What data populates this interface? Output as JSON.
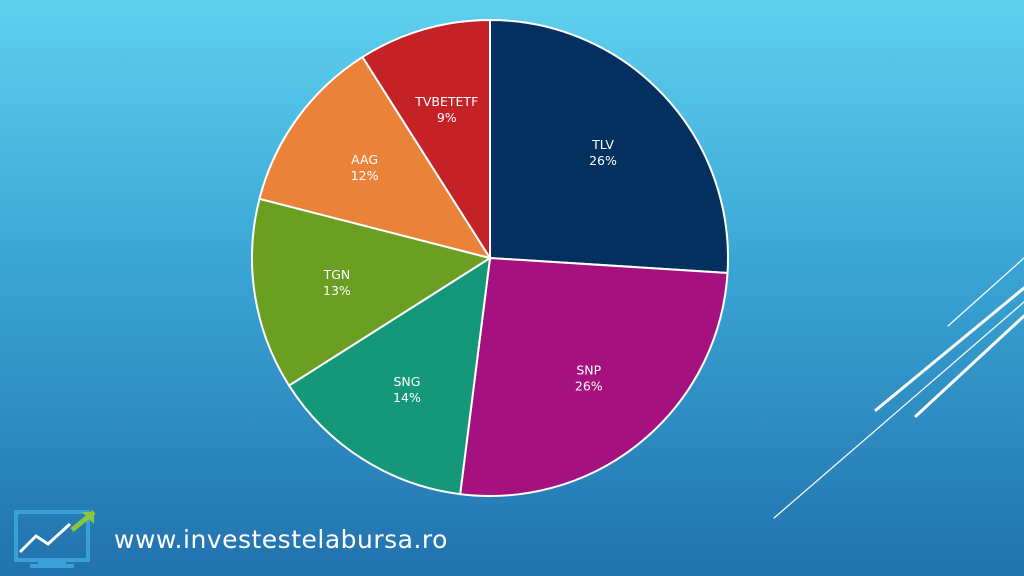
{
  "chart_data": {
    "type": "pie",
    "title": "",
    "slices": [
      {
        "label": "TLV",
        "value": 26,
        "display": "26%",
        "color": "#04305f"
      },
      {
        "label": "SNP",
        "value": 26,
        "display": "26%",
        "color": "#a5117f"
      },
      {
        "label": "SNG",
        "value": 14,
        "display": "14%",
        "color": "#159879"
      },
      {
        "label": "TGN",
        "value": 13,
        "display": "13%",
        "color": "#6b9f22"
      },
      {
        "label": "AAG",
        "value": 12,
        "display": "12%",
        "color": "#eb823a"
      },
      {
        "label": "TVBETETF",
        "value": 9,
        "display": "9%",
        "color": "#c42227"
      }
    ],
    "start": "12 o'clock",
    "direction": "clockwise",
    "legend": "none",
    "data_labels": "inside"
  },
  "footer": {
    "url": "www.investestelabursa.ro",
    "logo_icon": "rising-chart-icon"
  },
  "colors": {
    "background_top": "#5fd0ee",
    "background_bottom": "#2272ae",
    "logo_accent": "#3aa0d8",
    "logo_arrow": "#8cc63f"
  }
}
